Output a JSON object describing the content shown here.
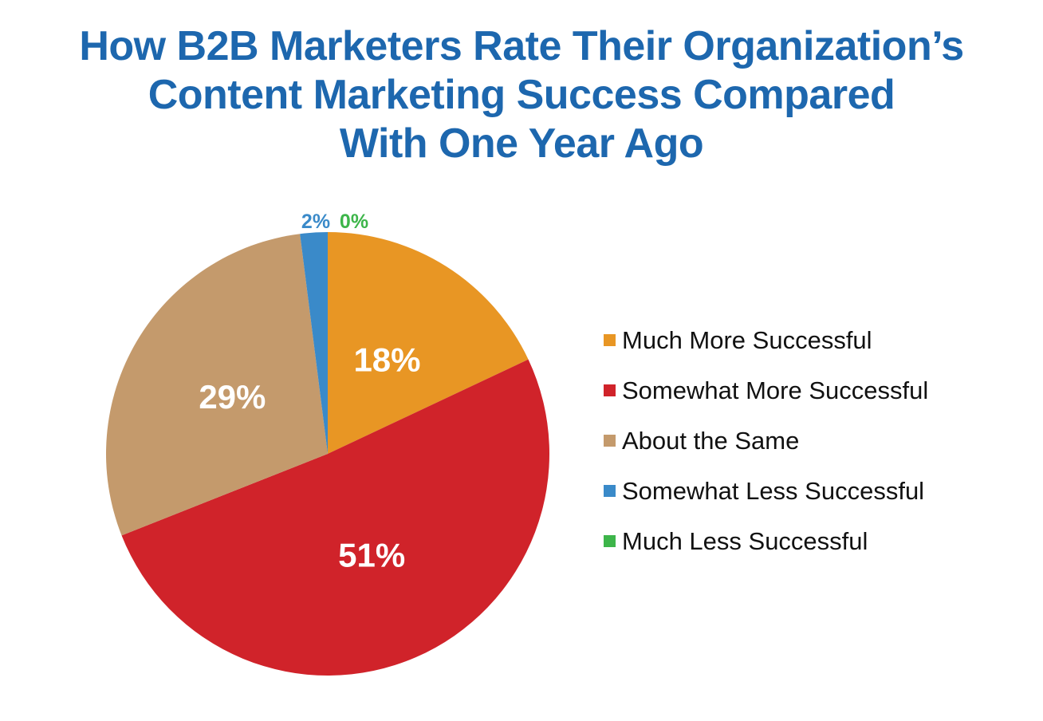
{
  "chart_data": {
    "type": "pie",
    "title_lines": [
      "How B2B Marketers Rate Their Organization’s",
      "Content Marketing Success Compared",
      "With One Year Ago"
    ],
    "start_angle": "12 o'clock, clockwise",
    "legend_position": "right",
    "slices": [
      {
        "name": "Much More Successful",
        "value": 18,
        "label": "18%",
        "color": "#e89624"
      },
      {
        "name": "Somewhat More Successful",
        "value": 51,
        "label": "51%",
        "color": "#d0232a"
      },
      {
        "name": "About the Same",
        "value": 29,
        "label": "29%",
        "color": "#c49a6c"
      },
      {
        "name": "Somewhat Less Successful",
        "value": 2,
        "label": "2%",
        "color": "#3a8ac9"
      },
      {
        "name": "Much Less Successful",
        "value": 0,
        "label": "0%",
        "color": "#3db54a"
      }
    ]
  }
}
